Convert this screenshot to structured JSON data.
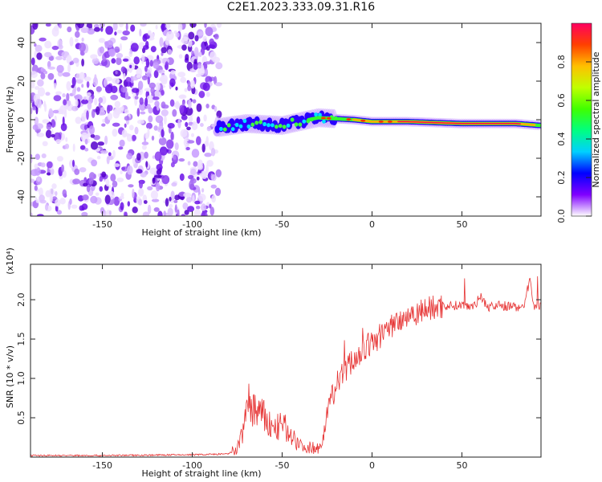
{
  "title": "C2E1.2023.333.09.31.R16",
  "chart_data": [
    {
      "type": "heatmap",
      "xlabel": "Height of straight line (km)",
      "ylabel": "Frequency (Hz)",
      "xlim": [
        -190,
        94
      ],
      "ylim": [
        -50,
        50
      ],
      "xticks": [
        -150,
        -100,
        -50,
        0,
        50
      ],
      "yticks": [
        -40,
        -20,
        0,
        20,
        40
      ],
      "colorbar": {
        "label": "Normalized spectral amplitude",
        "range": [
          0,
          1
        ],
        "ticks": [
          "0.0",
          "0.2",
          "0.4",
          "0.6",
          "0.8"
        ],
        "colors": [
          "#ffffff",
          "#8000ff",
          "#0000ff",
          "#00d0ff",
          "#00ff80",
          "#40ff00",
          "#c0ff00",
          "#ffc000",
          "#ff4000",
          "#ff0060"
        ]
      },
      "description_regions": {
        "noise_x_range": [
          -190,
          -85
        ],
        "signal_track": [
          [
            -85,
            -4
          ],
          [
            -70,
            -2
          ],
          [
            -50,
            -3
          ],
          [
            -30,
            1
          ],
          [
            -10,
            0
          ],
          [
            0,
            -1
          ],
          [
            20,
            -1
          ],
          [
            50,
            -2
          ],
          [
            80,
            -2
          ],
          [
            94,
            -3
          ]
        ]
      }
    },
    {
      "type": "line",
      "xlabel": "Height of straight line (km)",
      "ylabel": "SNR (10 * v/v)",
      "yscale_label": "(x10⁴)",
      "xlim": [
        -190,
        94
      ],
      "ylim": [
        0,
        2.45
      ],
      "xticks": [
        -150,
        -100,
        -50,
        0,
        50
      ],
      "yticks": [
        "0.5",
        "1.0",
        "1.5",
        "2.0"
      ],
      "color": "#e63232",
      "series": [
        {
          "x": [
            -190,
            -150,
            -100,
            -80,
            -75,
            -72,
            -70,
            -65,
            -60,
            -55,
            -50,
            -45,
            -40,
            -35,
            -30,
            -27,
            -25,
            -22,
            -20,
            -15,
            -10,
            -5,
            0,
            5,
            10,
            15,
            20,
            25,
            30,
            35,
            40,
            50,
            55,
            58,
            60,
            65,
            70,
            75,
            80,
            85,
            88,
            90,
            92,
            94
          ],
          "y": [
            0.02,
            0.02,
            0.03,
            0.04,
            0.1,
            0.3,
            0.7,
            0.6,
            0.5,
            0.35,
            0.4,
            0.3,
            0.15,
            0.12,
            0.12,
            0.25,
            0.6,
            0.8,
            0.9,
            1.1,
            1.25,
            1.35,
            1.45,
            1.55,
            1.65,
            1.75,
            1.8,
            1.85,
            1.88,
            1.9,
            1.92,
            1.93,
            1.93,
            1.95,
            2.05,
            1.9,
            1.93,
            1.92,
            1.9,
            1.95,
            2.3,
            1.9,
            1.95,
            1.92
          ]
        }
      ]
    }
  ]
}
